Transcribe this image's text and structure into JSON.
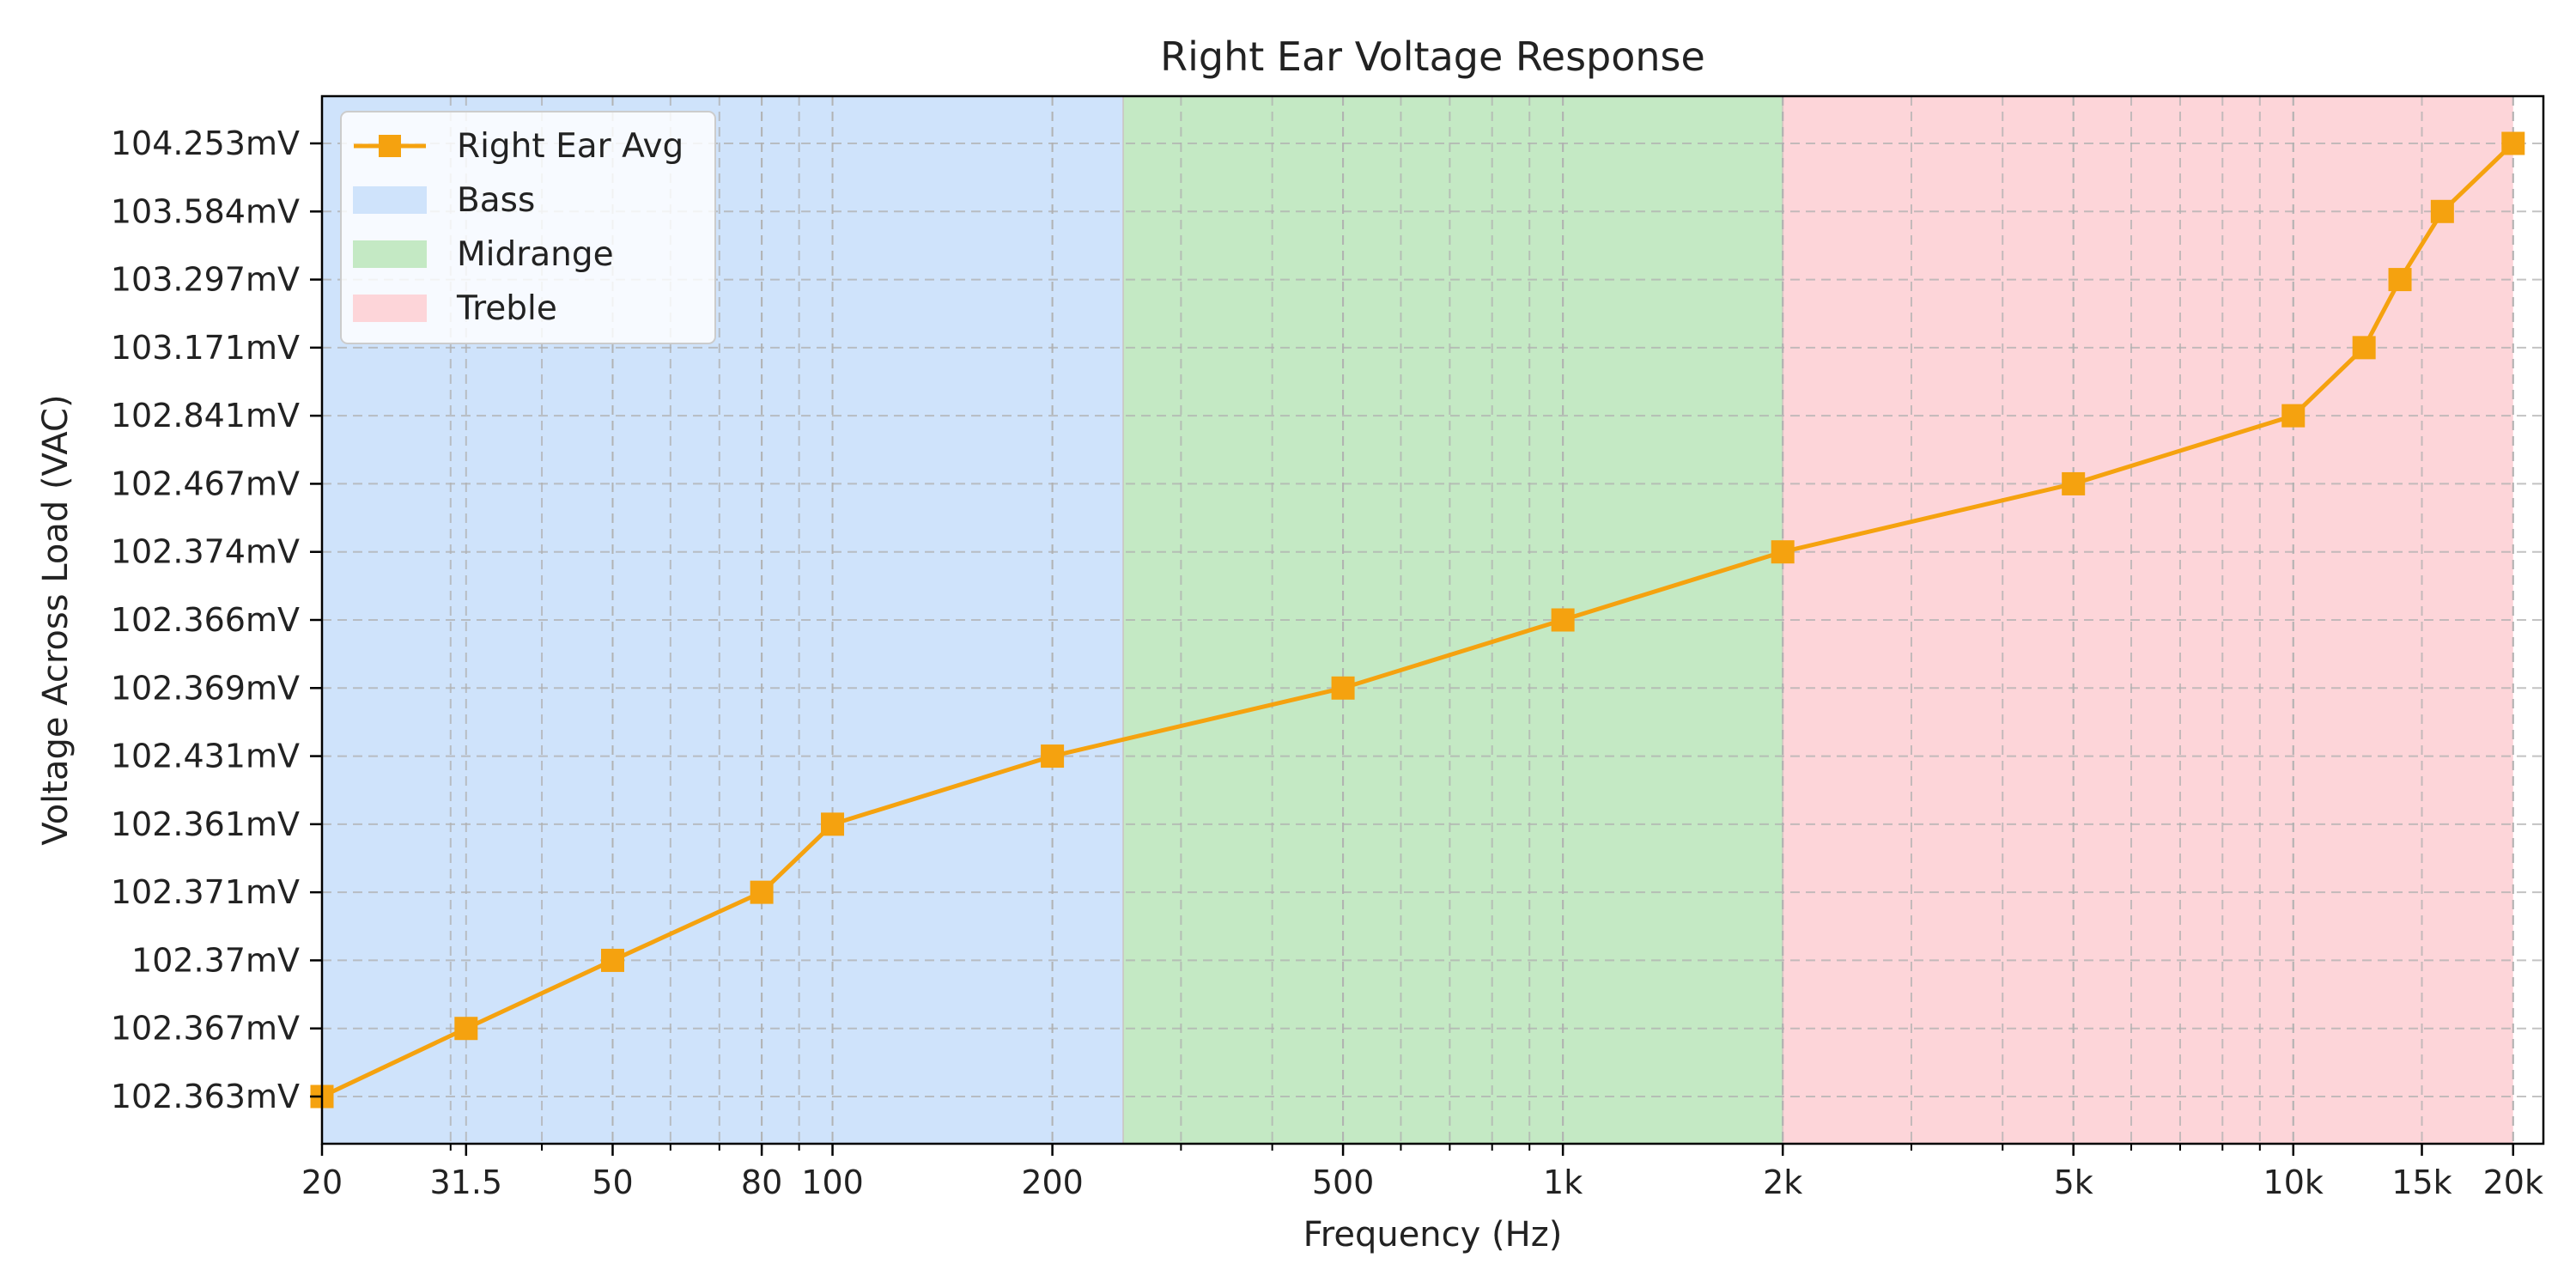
{
  "chart_data": {
    "type": "line",
    "title": "Right Ear Voltage Response",
    "xlabel": "Frequency (Hz)",
    "ylabel": "Voltage Across Load (VAC)",
    "x_scale": "log",
    "xlim": [
      20,
      22000
    ],
    "x_ticks": [
      {
        "value": 20,
        "label": "20"
      },
      {
        "value": 31.5,
        "label": "31.5"
      },
      {
        "value": 50,
        "label": "50"
      },
      {
        "value": 80,
        "label": "80"
      },
      {
        "value": 100,
        "label": "100"
      },
      {
        "value": 200,
        "label": "200"
      },
      {
        "value": 500,
        "label": "500"
      },
      {
        "value": 1000,
        "label": "1k"
      },
      {
        "value": 2000,
        "label": "2k"
      },
      {
        "value": 5000,
        "label": "5k"
      },
      {
        "value": 10000,
        "label": "10k"
      },
      {
        "value": 15000,
        "label": "15k"
      },
      {
        "value": 20000,
        "label": "20k"
      }
    ],
    "y_categorical": true,
    "y_ticks": [
      "102.363mV",
      "102.367mV",
      "102.37mV",
      "102.371mV",
      "102.361mV",
      "102.431mV",
      "102.369mV",
      "102.366mV",
      "102.374mV",
      "102.467mV",
      "102.841mV",
      "103.171mV",
      "103.297mV",
      "103.584mV",
      "104.253mV"
    ],
    "grid": true,
    "legend_position": "top-left",
    "bands": [
      {
        "name": "Bass",
        "from": 20,
        "to": 250,
        "color": "#cfe3fb"
      },
      {
        "name": "Midrange",
        "from": 250,
        "to": 2000,
        "color": "#c4e9c4"
      },
      {
        "name": "Treble",
        "from": 2000,
        "to": 20000,
        "color": "#fdd5d9"
      }
    ],
    "series": [
      {
        "name": "Right Ear Avg",
        "color": "#f5a20f",
        "marker": "square",
        "x": [
          20,
          31.5,
          50,
          80,
          100,
          200,
          500,
          1000,
          2000,
          5000,
          10000,
          12500,
          14000,
          16000,
          20000
        ],
        "values": [
          102.363,
          102.367,
          102.37,
          102.371,
          102.361,
          102.431,
          102.369,
          102.366,
          102.374,
          102.467,
          102.841,
          103.171,
          103.297,
          103.584,
          104.253
        ]
      }
    ]
  }
}
